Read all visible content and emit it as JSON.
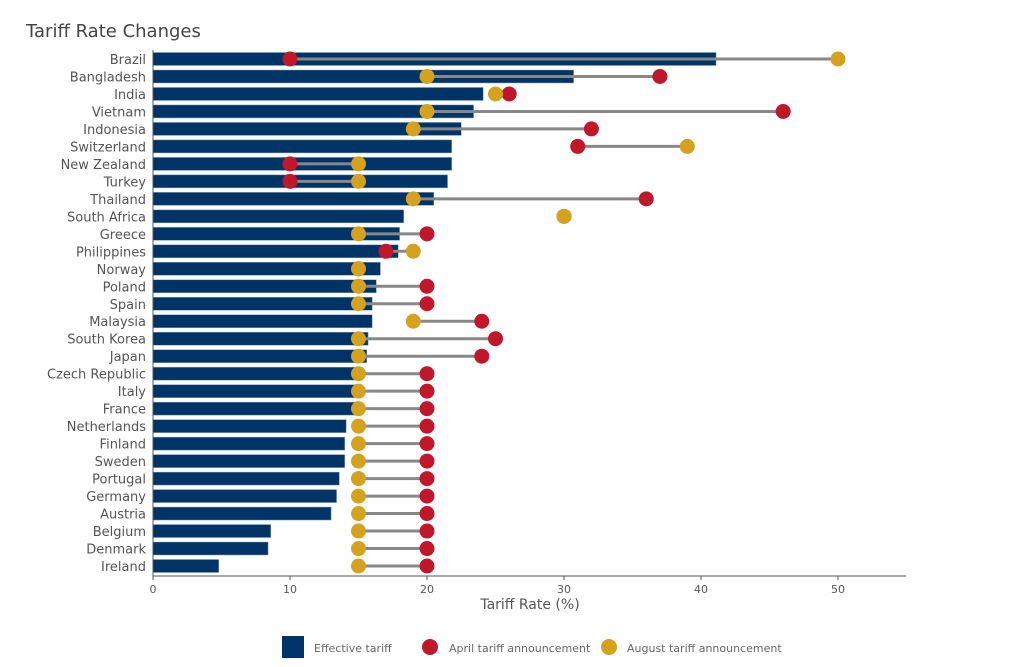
{
  "chart_data": {
    "type": "bar",
    "title": "Tariff Rate Changes",
    "xlabel": "Tariff Rate (%)",
    "ylabel": "",
    "xlim": [
      0,
      55
    ],
    "xticks": [
      0,
      10,
      20,
      30,
      40,
      50
    ],
    "grid": false,
    "legend_placement": "bottom",
    "colors": {
      "effective": "#003366",
      "april": "#C0182A",
      "august": "#D4A21F",
      "connector": "#888888"
    },
    "categories": [
      "Brazil",
      "Bangladesh",
      "India",
      "Vietnam",
      "Indonesia",
      "Switzerland",
      "New Zealand",
      "Turkey",
      "Thailand",
      "South Africa",
      "Greece",
      "Philippines",
      "Norway",
      "Poland",
      "Spain",
      "Malaysia",
      "South Korea",
      "Japan",
      "Czech Republic",
      "Italy",
      "France",
      "Netherlands",
      "Finland",
      "Sweden",
      "Portugal",
      "Germany",
      "Austria",
      "Belgium",
      "Denmark",
      "Ireland"
    ],
    "series": [
      {
        "name": "Effective tariff",
        "kind": "bar",
        "values": [
          41.1,
          30.7,
          24.1,
          23.4,
          22.5,
          21.8,
          21.8,
          21.5,
          20.5,
          18.3,
          18.0,
          17.9,
          16.6,
          16.3,
          16.0,
          16.0,
          15.7,
          15.6,
          15.3,
          15.2,
          15.0,
          14.1,
          14.0,
          14.0,
          13.6,
          13.4,
          13.0,
          8.6,
          8.4,
          4.8
        ]
      },
      {
        "name": "April tariff announcement",
        "kind": "dot",
        "values": [
          10,
          37,
          26,
          46,
          32,
          31,
          10,
          10,
          36,
          30,
          20,
          17,
          15,
          20,
          20,
          24,
          25,
          24,
          20,
          20,
          20,
          20,
          20,
          20,
          20,
          20,
          20,
          20,
          20,
          20
        ]
      },
      {
        "name": "August tariff announcement",
        "kind": "dot",
        "values": [
          50,
          20,
          25,
          20,
          19,
          39,
          15,
          15,
          19,
          30,
          15,
          19,
          15,
          15,
          15,
          19,
          15,
          15,
          15,
          15,
          15,
          15,
          15,
          15,
          15,
          15,
          15,
          15,
          15,
          15
        ]
      }
    ]
  }
}
